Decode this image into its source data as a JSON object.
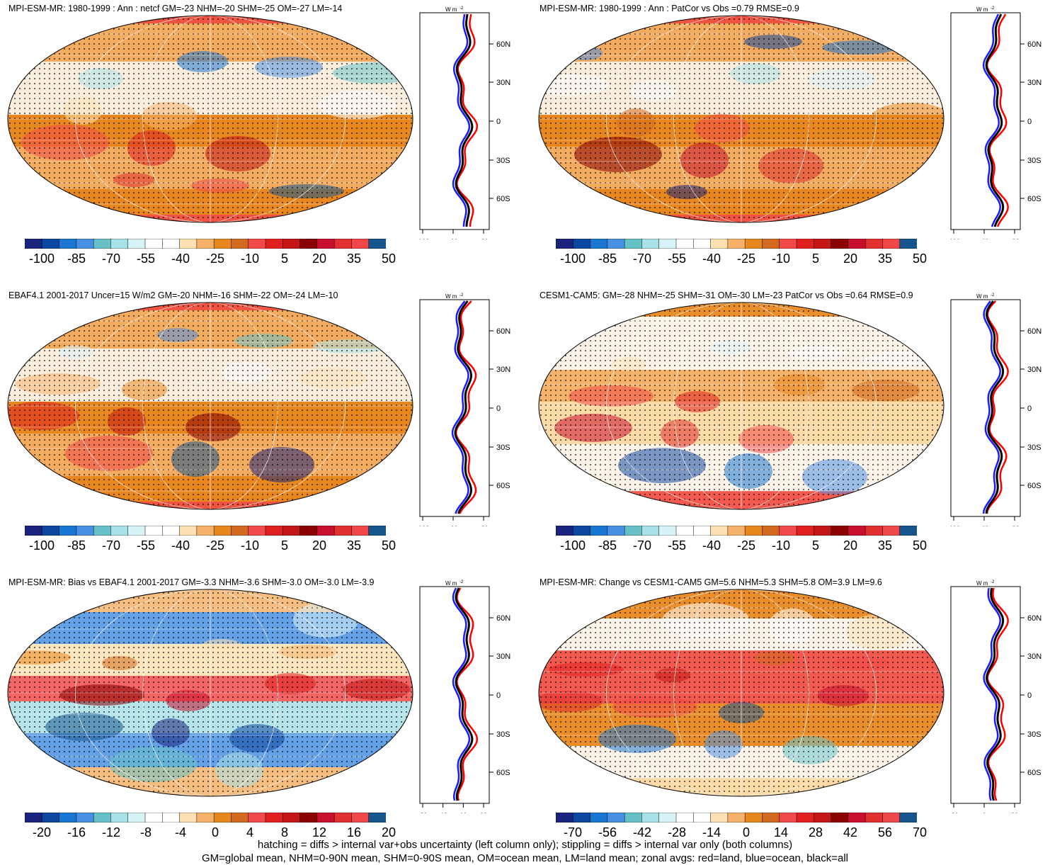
{
  "panels": [
    {
      "title": "MPI-ESM-MR: 1980-1999 : Ann : netcf GM=-23 NHM=-20 SHM=-25 OM=-27 LM=-14",
      "cbar": [
        "-100",
        "-85",
        "-70",
        "-55",
        "-40",
        "-25",
        "-10",
        "5",
        "20",
        "35",
        "50"
      ],
      "zonal_ticks": [
        "-100",
        "-60",
        "-20"
      ],
      "style": "neg"
    },
    {
      "title": "MPI-ESM-MR: 1980-1999 : Ann : PatCor vs Obs =0.79 RMSE=0.9",
      "cbar": [
        "-100",
        "-85",
        "-70",
        "-55",
        "-40",
        "-25",
        "-10",
        "5",
        "20",
        "35",
        "50"
      ],
      "zonal_ticks": [
        "-100",
        "-60",
        "-20"
      ],
      "style": "neg"
    },
    {
      "title": "EBAF4.1 2001-2017 Uncer=15 W/m2 GM=-20 NHM=-16 SHM=-22 OM=-24 LM=-10",
      "cbar": [
        "-100",
        "-85",
        "-70",
        "-55",
        "-40",
        "-25",
        "-10",
        "5",
        "20",
        "35",
        "50"
      ],
      "zonal_ticks": [
        "-100",
        "-60",
        "-20"
      ],
      "style": "neg"
    },
    {
      "title": "CESM1-CAM5: GM=-28 NHM=-25 SHM=-31 OM=-30 LM=-23 PatCor vs Obs =0.64 RMSE=0.9",
      "cbar": [
        "-100",
        "-85",
        "-70",
        "-55",
        "-40",
        "-25",
        "-10",
        "5",
        "20",
        "35",
        "50"
      ],
      "zonal_ticks": [
        "-100",
        "-60",
        "-20"
      ],
      "style": "pale"
    },
    {
      "title": "MPI-ESM-MR: Bias vs EBAF4.1 2001-2017 GM=-3.3 NHM=-3.6 SHM=-3.0 OM=-3.0 LM=-3.9",
      "cbar": [
        "-20",
        "-16",
        "-12",
        "-8",
        "-4",
        "0",
        "4",
        "8",
        "12",
        "16",
        "20"
      ],
      "zonal_ticks": [
        "-30",
        "-10",
        "10",
        "30"
      ],
      "style": "bias"
    },
    {
      "title": "MPI-ESM-MR: Change vs CESM1-CAM5 GM=5.6 NHM=5.3 SHM=5.8 OM=3.9 LM=9.6",
      "cbar": [
        "-70",
        "-56",
        "-42",
        "-28",
        "-14",
        "0",
        "14",
        "28",
        "42",
        "56",
        "70"
      ],
      "zonal_ticks": [
        "-20",
        "0",
        "20"
      ],
      "style": "change"
    }
  ],
  "lat_labels": [
    "60N",
    "30N",
    "0",
    "30S",
    "60S"
  ],
  "unit_label": "W m",
  "unit_sup": "-2",
  "colors": [
    "#1a237e",
    "#0d47a1",
    "#1976d2",
    "#4a90e2",
    "#66c2c8",
    "#a8e1e8",
    "#d8f3f7",
    "#ffffff",
    "#ffffff",
    "#ffe0b2",
    "#f5b26b",
    "#e8871e",
    "#d2691e",
    "#f24a4a",
    "#e02020",
    "#c41616",
    "#8b0000",
    "#c8102e",
    "#e03030",
    "#f04848",
    "#16568f"
  ],
  "footer": {
    "line1": "hatching = diffs > internal var+obs uncertainty (left column only); stippling = diffs > internal var only (both columns)",
    "line2": "GM=global mean, NHM=0-90N mean, SHM=0-90S mean, OM=ocean mean, LM=land mean; zonal avgs: red=land, blue=ocean, black=all"
  }
}
